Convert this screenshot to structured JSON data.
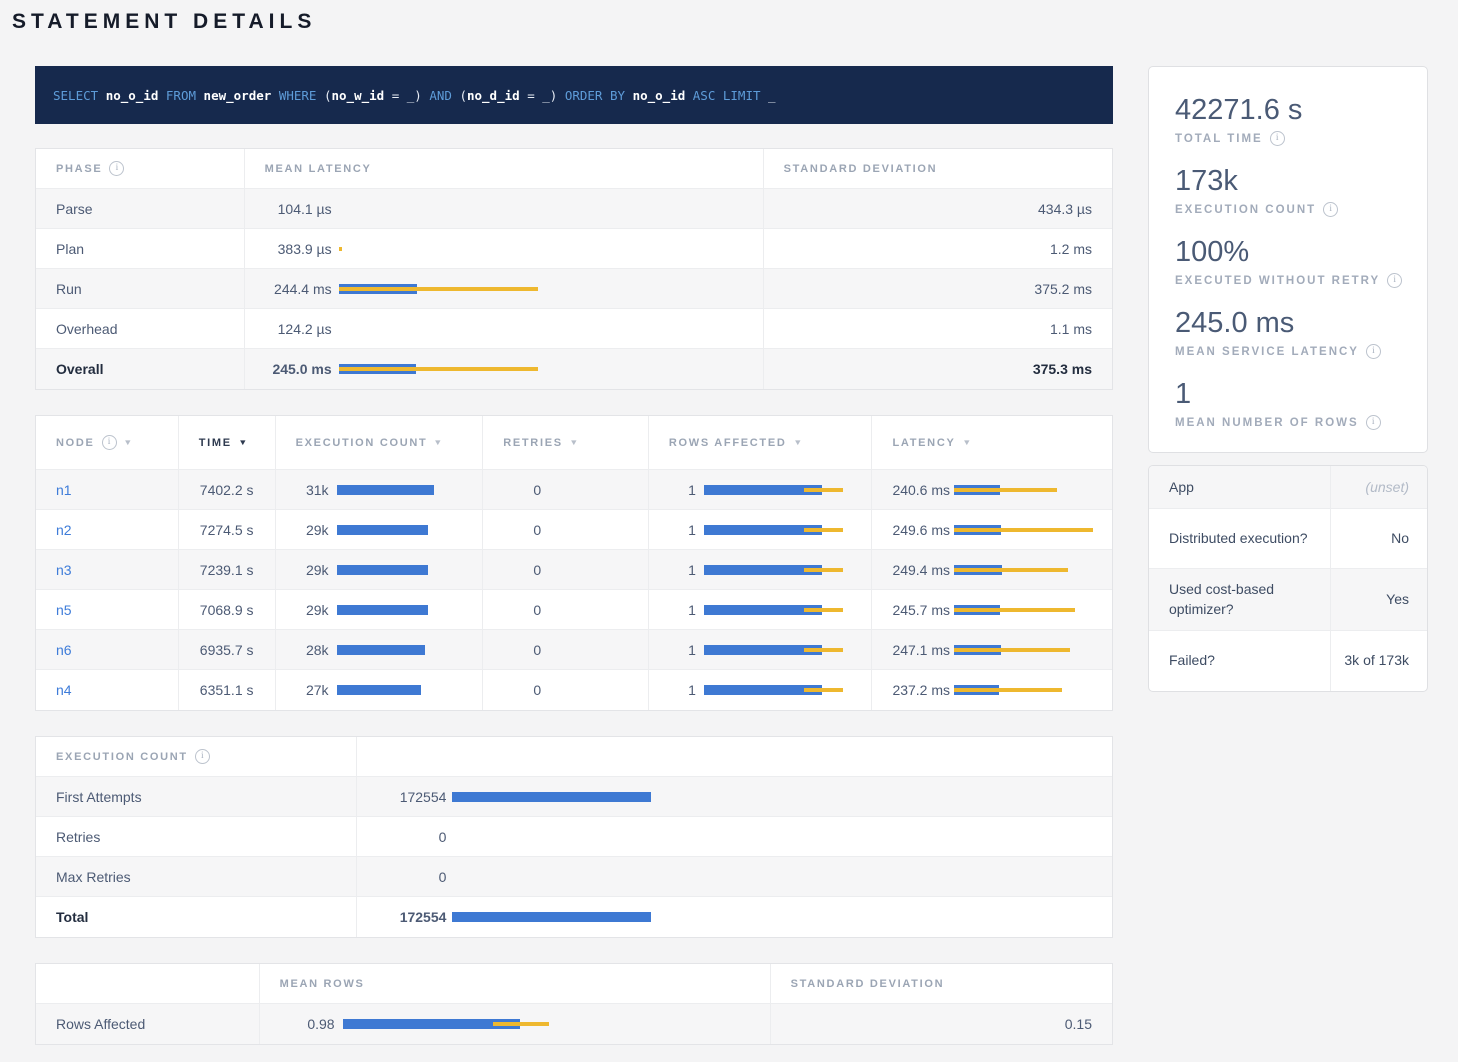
{
  "title": "STATEMENT DETAILS",
  "colors": {
    "bar_blue": "#3E79D3",
    "bar_yellow": "#EEB82F",
    "link_blue": "#3E7CD9",
    "sql_bg": "#16294D"
  },
  "sql": {
    "text": "SELECT no_o_id FROM new_order WHERE (no_w_id = _) AND (no_d_id = _) ORDER BY no_o_id ASC LIMIT _",
    "tokens": [
      {
        "text": "SELECT ",
        "type": "kw"
      },
      {
        "text": "no_o_id",
        "type": "id"
      },
      {
        "text": " ",
        "type": "p"
      },
      {
        "text": "FROM ",
        "type": "kw"
      },
      {
        "text": "new_order",
        "type": "id"
      },
      {
        "text": " ",
        "type": "p"
      },
      {
        "text": "WHERE ",
        "type": "kw"
      },
      {
        "text": "(",
        "type": "p"
      },
      {
        "text": "no_w_id",
        "type": "id"
      },
      {
        "text": " = _) ",
        "type": "p"
      },
      {
        "text": "AND ",
        "type": "kw"
      },
      {
        "text": "(",
        "type": "p"
      },
      {
        "text": "no_d_id",
        "type": "id"
      },
      {
        "text": " = _) ",
        "type": "p"
      },
      {
        "text": "ORDER BY ",
        "type": "kw"
      },
      {
        "text": "no_o_id",
        "type": "id"
      },
      {
        "text": " ",
        "type": "p"
      },
      {
        "text": "ASC LIMIT ",
        "type": "kw"
      },
      {
        "text": "_",
        "type": "p"
      }
    ]
  },
  "phase_table": {
    "headers": [
      {
        "label": "PHASE",
        "info": true
      },
      {
        "label": "MEAN LATENCY"
      },
      {
        "label": "STANDARD DEVIATION"
      }
    ],
    "rows": [
      {
        "phase": "Parse",
        "mean": "104.1 µs",
        "sd": "434.3 µs",
        "bold": false,
        "bar": {
          "blue": 0,
          "yellow": null
        }
      },
      {
        "phase": "Plan",
        "mean": "383.9 µs",
        "sd": "1.2 ms",
        "bold": false,
        "bar": {
          "blue": 0,
          "yellow": [
            0,
            3
          ]
        }
      },
      {
        "phase": "Run",
        "mean": "244.4 ms",
        "sd": "375.2 ms",
        "bold": false,
        "bar": {
          "blue": 78,
          "yellow": [
            0,
            199
          ]
        }
      },
      {
        "phase": "Overhead",
        "mean": "124.2 µs",
        "sd": "1.1 ms",
        "bold": false,
        "bar": {
          "blue": 0,
          "yellow": null
        }
      },
      {
        "phase": "Overall",
        "mean": "245.0 ms",
        "sd": "375.3 ms",
        "bold": true,
        "bar": {
          "blue": 77,
          "yellow": [
            0,
            199
          ]
        }
      }
    ]
  },
  "node_table": {
    "headers": [
      {
        "label": "NODE",
        "info": true,
        "sort": true
      },
      {
        "label": "TIME",
        "sort": true,
        "active": true
      },
      {
        "label": "EXECUTION COUNT",
        "sort": true
      },
      {
        "label": "RETRIES",
        "sort": true
      },
      {
        "label": "ROWS AFFECTED",
        "sort": true
      },
      {
        "label": "LATENCY",
        "sort": true
      }
    ],
    "rows": [
      {
        "node": "n1",
        "time": "7402.2 s",
        "exec": {
          "label": "31k",
          "blue": 97
        },
        "retries": "0",
        "rows": {
          "label": "1",
          "blue": 118,
          "yellow": [
            100,
            39
          ]
        },
        "latency": {
          "label": "240.6 ms",
          "blue": 46,
          "yellow": [
            0,
            103
          ]
        }
      },
      {
        "node": "n2",
        "time": "7274.5 s",
        "exec": {
          "label": "29k",
          "blue": 91
        },
        "retries": "0",
        "rows": {
          "label": "1",
          "blue": 118,
          "yellow": [
            100,
            39
          ]
        },
        "latency": {
          "label": "249.6 ms",
          "blue": 47,
          "yellow": [
            0,
            139
          ]
        }
      },
      {
        "node": "n3",
        "time": "7239.1 s",
        "exec": {
          "label": "29k",
          "blue": 91
        },
        "retries": "0",
        "rows": {
          "label": "1",
          "blue": 118,
          "yellow": [
            100,
            39
          ]
        },
        "latency": {
          "label": "249.4 ms",
          "blue": 48,
          "yellow": [
            0,
            114
          ]
        }
      },
      {
        "node": "n5",
        "time": "7068.9 s",
        "exec": {
          "label": "29k",
          "blue": 91
        },
        "retries": "0",
        "rows": {
          "label": "1",
          "blue": 118,
          "yellow": [
            100,
            39
          ]
        },
        "latency": {
          "label": "245.7 ms",
          "blue": 46,
          "yellow": [
            0,
            121
          ]
        }
      },
      {
        "node": "n6",
        "time": "6935.7 s",
        "exec": {
          "label": "28k",
          "blue": 88
        },
        "retries": "0",
        "rows": {
          "label": "1",
          "blue": 118,
          "yellow": [
            100,
            39
          ]
        },
        "latency": {
          "label": "247.1 ms",
          "blue": 47,
          "yellow": [
            0,
            116
          ]
        }
      },
      {
        "node": "n4",
        "time": "6351.1 s",
        "exec": {
          "label": "27k",
          "blue": 84
        },
        "retries": "0",
        "rows": {
          "label": "1",
          "blue": 118,
          "yellow": [
            100,
            39
          ]
        },
        "latency": {
          "label": "237.2 ms",
          "blue": 45,
          "yellow": [
            0,
            108
          ]
        }
      }
    ]
  },
  "exec_table": {
    "header": {
      "label": "EXECUTION COUNT",
      "info": true
    },
    "rows": [
      {
        "label": "First Attempts",
        "value": "172554",
        "bold": false,
        "bar": {
          "blue": 199,
          "yellow": null
        }
      },
      {
        "label": "Retries",
        "value": "0",
        "bold": false,
        "bar": {
          "blue": 0,
          "yellow": null
        }
      },
      {
        "label": "Max Retries",
        "value": "0",
        "bold": false,
        "bar": {
          "blue": 0,
          "yellow": null
        }
      },
      {
        "label": "Total",
        "value": "172554",
        "bold": true,
        "bar": {
          "blue": 199,
          "yellow": null
        }
      }
    ]
  },
  "rows_table": {
    "headers": [
      {
        "label": ""
      },
      {
        "label": "MEAN ROWS"
      },
      {
        "label": "STANDARD DEVIATION"
      }
    ],
    "rows": [
      {
        "label": "Rows Affected",
        "mean": "0.98",
        "sd": "0.15",
        "bar": {
          "blue": 177,
          "yellow": [
            150,
            56
          ]
        }
      }
    ]
  },
  "summary_stats": [
    {
      "value": "42271.6 s",
      "label": "TOTAL TIME"
    },
    {
      "value": "173k",
      "label": "EXECUTION COUNT"
    },
    {
      "value": "100%",
      "label": "EXECUTED WITHOUT RETRY"
    },
    {
      "value": "245.0 ms",
      "label": "MEAN SERVICE LATENCY"
    },
    {
      "value": "1",
      "label": "MEAN NUMBER OF ROWS"
    }
  ],
  "properties": [
    {
      "label": "App",
      "value": "(unset)",
      "italic": true,
      "header": true
    },
    {
      "label": "Distributed execution?",
      "value": "No"
    },
    {
      "label": "Used cost-based optimizer?",
      "value": "Yes"
    },
    {
      "label": "Failed?",
      "value": "3k of 173k"
    }
  ]
}
